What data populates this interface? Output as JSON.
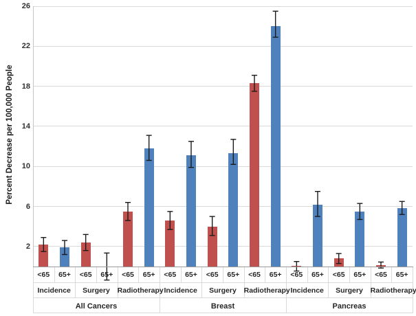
{
  "chart_data": {
    "type": "bar",
    "title": "",
    "ylabel": "Percent Decrease per 100,000 People",
    "xlabel": "",
    "ylim": [
      0,
      26
    ],
    "yticks": [
      2,
      6,
      10,
      14,
      18,
      22,
      26
    ],
    "grid": true,
    "legend_position": "none",
    "group_labels": [
      "All Cancers",
      "Breast",
      "Pancreas"
    ],
    "subgroup_labels": [
      "Incidence",
      "Surgery",
      "Radiotherapy"
    ],
    "age_labels": [
      "<65",
      "65+"
    ],
    "series_colors": {
      "<65": "#c0504d",
      "65+": "#4f81bd"
    },
    "error_bar_color": "#1a1a1a",
    "bars": [
      {
        "group": "All Cancers",
        "subgroup": "Incidence",
        "age": "<65",
        "value": 2.2,
        "err_lo": 1.5,
        "err_hi": 2.9
      },
      {
        "group": "All Cancers",
        "subgroup": "Incidence",
        "age": "65+",
        "value": 1.9,
        "err_lo": 1.2,
        "err_hi": 2.6
      },
      {
        "group": "All Cancers",
        "subgroup": "Surgery",
        "age": "<65",
        "value": 2.4,
        "err_lo": 1.6,
        "err_hi": 3.2
      },
      {
        "group": "All Cancers",
        "subgroup": "Surgery",
        "age": "65+",
        "value": 0.0,
        "err_lo": -1.35,
        "err_hi": 1.35
      },
      {
        "group": "All Cancers",
        "subgroup": "Radiotherapy",
        "age": "<65",
        "value": 5.5,
        "err_lo": 4.6,
        "err_hi": 6.4
      },
      {
        "group": "All Cancers",
        "subgroup": "Radiotherapy",
        "age": "65+",
        "value": 11.8,
        "err_lo": 10.6,
        "err_hi": 13.1
      },
      {
        "group": "Breast",
        "subgroup": "Incidence",
        "age": "<65",
        "value": 4.6,
        "err_lo": 3.7,
        "err_hi": 5.5
      },
      {
        "group": "Breast",
        "subgroup": "Incidence",
        "age": "65+",
        "value": 11.1,
        "err_lo": 9.9,
        "err_hi": 12.5
      },
      {
        "group": "Breast",
        "subgroup": "Surgery",
        "age": "<65",
        "value": 4.0,
        "err_lo": 3.1,
        "err_hi": 5.0
      },
      {
        "group": "Breast",
        "subgroup": "Surgery",
        "age": "65+",
        "value": 11.3,
        "err_lo": 10.2,
        "err_hi": 12.7
      },
      {
        "group": "Breast",
        "subgroup": "Radiotherapy",
        "age": "<65",
        "value": 18.3,
        "err_lo": 17.5,
        "err_hi": 19.1
      },
      {
        "group": "Breast",
        "subgroup": "Radiotherapy",
        "age": "65+",
        "value": 24.0,
        "err_lo": 22.9,
        "err_hi": 25.5
      },
      {
        "group": "Pancreas",
        "subgroup": "Incidence",
        "age": "<65",
        "value": 0.1,
        "err_lo": -0.45,
        "err_hi": 0.5
      },
      {
        "group": "Pancreas",
        "subgroup": "Incidence",
        "age": "65+",
        "value": 6.2,
        "err_lo": 5.0,
        "err_hi": 7.5
      },
      {
        "group": "Pancreas",
        "subgroup": "Surgery",
        "age": "<65",
        "value": 0.8,
        "err_lo": 0.3,
        "err_hi": 1.3
      },
      {
        "group": "Pancreas",
        "subgroup": "Surgery",
        "age": "65+",
        "value": 5.5,
        "err_lo": 4.7,
        "err_hi": 6.3
      },
      {
        "group": "Pancreas",
        "subgroup": "Radiotherapy",
        "age": "<65",
        "value": 0.15,
        "err_lo": -0.15,
        "err_hi": 0.45
      },
      {
        "group": "Pancreas",
        "subgroup": "Radiotherapy",
        "age": "65+",
        "value": 5.8,
        "err_lo": 5.2,
        "err_hi": 6.5
      }
    ]
  }
}
